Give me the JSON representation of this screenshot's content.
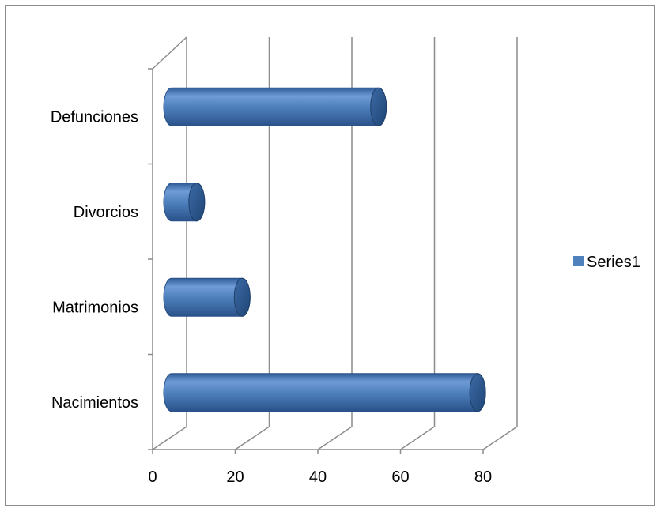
{
  "chart_data": {
    "type": "bar",
    "orientation": "horizontal",
    "style": "3d-cylinder",
    "categories": [
      "Nacimientos",
      "Matrimonios",
      "Divorcios",
      "Defunciones"
    ],
    "series": [
      {
        "name": "Series1",
        "values": [
          76,
          19,
          8,
          52
        ],
        "color": "#4f81bd"
      }
    ],
    "xlim": [
      0,
      80
    ],
    "xticks": [
      0,
      20,
      40,
      60,
      80
    ],
    "title": "",
    "xlabel": "",
    "ylabel": "",
    "grid": true,
    "legend": {
      "position": "right",
      "entries": [
        "Series1"
      ]
    }
  }
}
